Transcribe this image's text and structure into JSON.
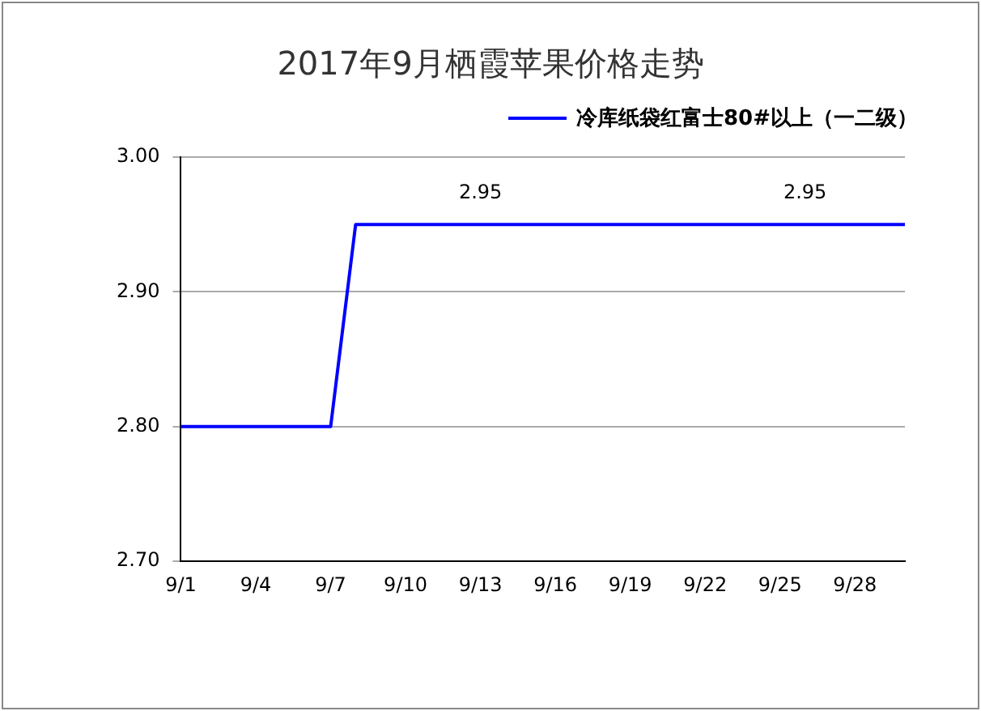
{
  "chart_data": {
    "type": "line",
    "title": "2017年9月栖霞苹果价格走势",
    "categories": [
      "9/1",
      null,
      null,
      "9/4",
      null,
      null,
      "9/7",
      null,
      null,
      "9/10",
      null,
      null,
      "9/13",
      null,
      null,
      "9/16",
      null,
      null,
      "9/19",
      null,
      null,
      "9/22",
      null,
      null,
      "9/25",
      null,
      null,
      "9/28",
      null,
      null
    ],
    "series": [
      {
        "name": "冷库纸袋红富士80#以上（一二级）",
        "color": "#0000ff",
        "values": [
          2.8,
          2.8,
          2.8,
          2.8,
          2.8,
          2.8,
          2.8,
          2.95,
          2.95,
          2.95,
          2.95,
          2.95,
          2.95,
          2.95,
          2.95,
          2.95,
          2.95,
          2.95,
          2.95,
          2.95,
          2.95,
          2.95,
          2.95,
          2.95,
          2.95,
          2.95,
          2.95,
          2.95,
          2.95,
          2.95
        ],
        "value_labels": [
          null,
          null,
          null,
          null,
          null,
          null,
          null,
          null,
          null,
          null,
          null,
          null,
          "2.95",
          null,
          null,
          null,
          null,
          null,
          null,
          null,
          null,
          null,
          null,
          null,
          null,
          "2.95",
          null,
          null,
          null,
          null
        ]
      }
    ],
    "ylim": [
      2.7,
      3.0
    ],
    "yticks": [
      {
        "value": 2.7,
        "label": "2.70"
      },
      {
        "value": 2.8,
        "label": "2.80"
      },
      {
        "value": 2.9,
        "label": "2.90"
      },
      {
        "value": 3.0,
        "label": "3.00"
      }
    ],
    "grid": "y",
    "legend": "top right",
    "marker": "none",
    "line_style": "solid"
  }
}
